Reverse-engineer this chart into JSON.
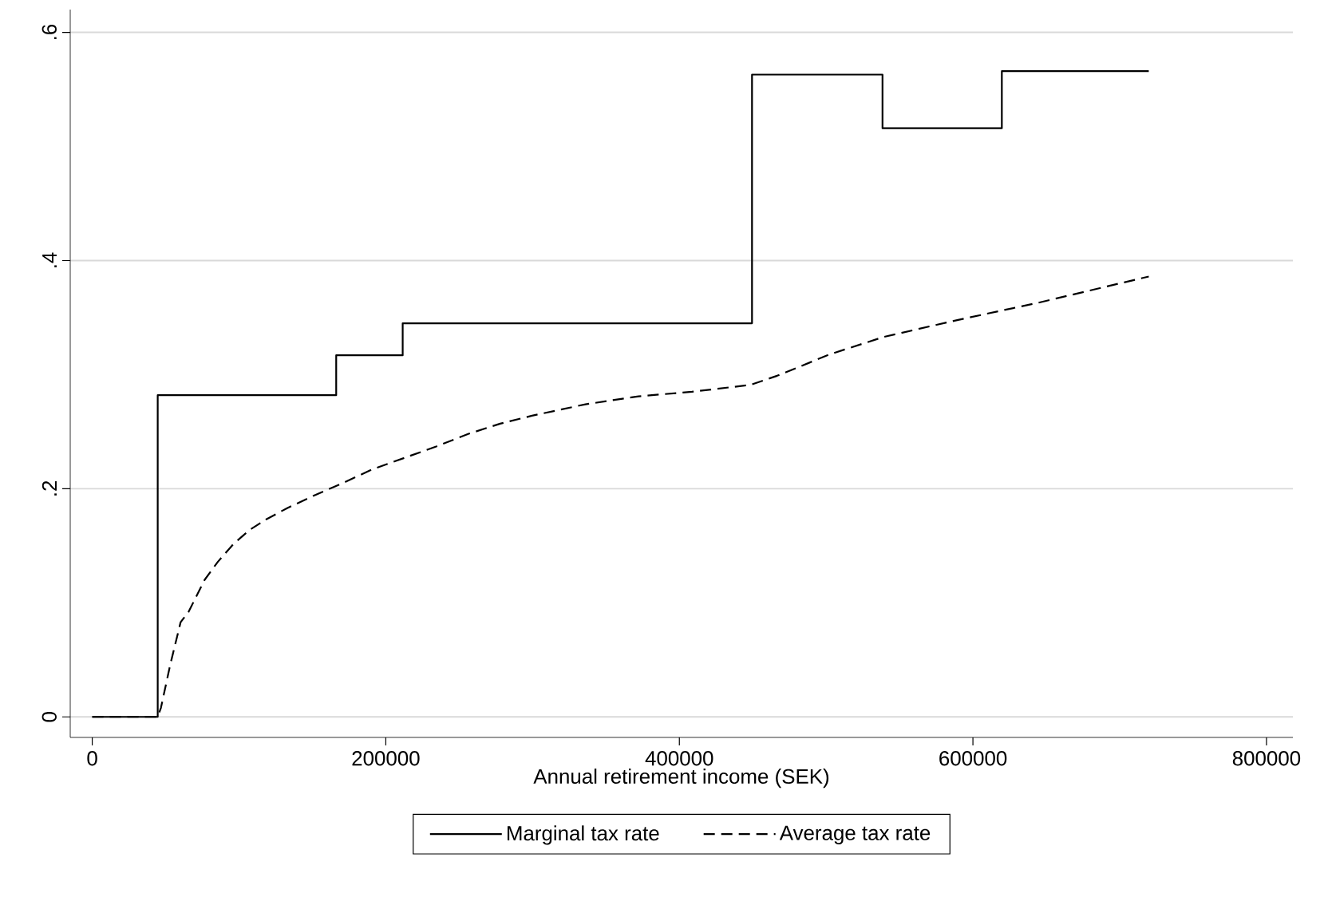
{
  "chart_data": {
    "type": "line",
    "xlabel": "Annual retirement income (SEK)",
    "xlim": [
      -15000,
      818000
    ],
    "ylim": [
      -0.018,
      0.62
    ],
    "xticks": [
      0,
      200000,
      400000,
      600000,
      800000
    ],
    "yticks": [
      0,
      {
        "value": 0.2,
        "label": ".2"
      },
      {
        "value": 0.4,
        "label": ".4"
      },
      {
        "value": 0.6,
        "label": ".6"
      }
    ],
    "grid": "y",
    "legend": "bottom",
    "series": [
      {
        "name": "Marginal tax rate",
        "type": "step",
        "color": "#000000",
        "line_style": "solid",
        "x": [
          0,
          44600,
          166200,
          211500,
          449500,
          538400,
          619700,
          719800
        ],
        "values": [
          0,
          0.282,
          0.317,
          0.345,
          0.563,
          0.516,
          0.566,
          0.566
        ]
      },
      {
        "name": "Average tax rate",
        "color": "#000000",
        "line_style": "dashed",
        "x": [
          0,
          44600,
          46800,
          53000,
          60200,
          65600,
          76500,
          85600,
          96500,
          107400,
          118300,
          132800,
          151000,
          169000,
          190800,
          212600,
          234300,
          256100,
          277900,
          299600,
          336000,
          372200,
          408500,
          448400,
          466600,
          502900,
          539100,
          589900,
          644400,
          719800
        ],
        "values": [
          0,
          0,
          0.008,
          0.045,
          0.083,
          0.092,
          0.12,
          0.136,
          0.152,
          0.164,
          0.173,
          0.183,
          0.194,
          0.204,
          0.217,
          0.227,
          0.237,
          0.248,
          0.257,
          0.264,
          0.274,
          0.281,
          0.285,
          0.291,
          0.299,
          0.318,
          0.333,
          0.348,
          0.363,
          0.386
        ]
      }
    ]
  }
}
